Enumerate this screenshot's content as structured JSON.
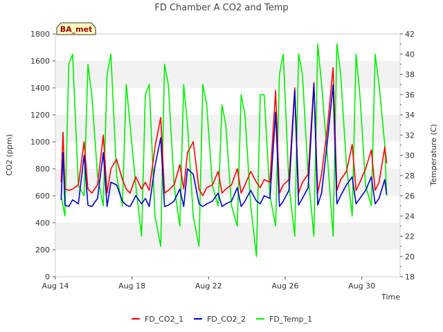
{
  "chart_data": {
    "type": "line",
    "title": "FD Chamber A CO2 and Temp",
    "xlabel": "Time",
    "ylabel_left": "CO2 (ppm)",
    "ylabel_right": "Temperature (C)",
    "badge": "BA_met",
    "x_ticks": [
      {
        "day": 14,
        "label": "Aug 14"
      },
      {
        "day": 18,
        "label": "Aug 18"
      },
      {
        "day": 22,
        "label": "Aug 22"
      },
      {
        "day": 26,
        "label": "Aug 26"
      },
      {
        "day": 30,
        "label": "Aug 30"
      }
    ],
    "xlim_days": [
      14,
      32
    ],
    "ylim_left": [
      0,
      1800
    ],
    "ylim_right": [
      18,
      42
    ],
    "y_ticks_left": [
      "0",
      "200",
      "400",
      "600",
      "800",
      "1000",
      "1200",
      "1400",
      "1600",
      "1800"
    ],
    "y_ticks_right": [
      "18",
      "20",
      "22",
      "24",
      "26",
      "28",
      "30",
      "32",
      "34",
      "36",
      "38",
      "40",
      "42"
    ],
    "legend_position": "bottom",
    "grid": "horizontal bands",
    "series": [
      {
        "name": "FD_CO2_1",
        "axis": "left",
        "color": "#ff0000",
        "x": [
          14.3,
          14.4,
          14.5,
          14.7,
          14.9,
          15.2,
          15.5,
          15.7,
          15.9,
          16.2,
          16.5,
          16.7,
          16.9,
          17.2,
          17.5,
          17.7,
          17.9,
          18.2,
          18.5,
          18.7,
          18.9,
          19.2,
          19.5,
          19.7,
          19.9,
          20.2,
          20.5,
          20.7,
          20.9,
          21.2,
          21.5,
          21.7,
          21.9,
          22.2,
          22.5,
          22.7,
          22.9,
          23.2,
          23.5,
          23.7,
          23.9,
          24.2,
          24.5,
          24.7,
          24.9,
          25.2,
          25.5,
          25.7,
          25.9,
          26.2,
          26.5,
          26.7,
          26.9,
          27.2,
          27.5,
          27.7,
          27.9,
          28.2,
          28.5,
          28.7,
          28.9,
          29.2,
          29.5,
          29.7,
          29.9,
          30.2,
          30.5,
          30.7,
          30.9,
          31.2,
          31.3
        ],
        "y": [
          700,
          1070,
          650,
          640,
          650,
          680,
          1000,
          650,
          620,
          680,
          1050,
          620,
          800,
          870,
          720,
          650,
          620,
          740,
          650,
          700,
          640,
          960,
          1180,
          620,
          640,
          680,
          830,
          650,
          920,
          1000,
          650,
          600,
          660,
          680,
          780,
          620,
          650,
          680,
          800,
          620,
          680,
          780,
          700,
          660,
          720,
          700,
          1380,
          620,
          680,
          720,
          1400,
          620,
          700,
          760,
          1440,
          620,
          760,
          1100,
          1550,
          640,
          720,
          780,
          980,
          640,
          700,
          800,
          940,
          640,
          700,
          960,
          840
        ]
      },
      {
        "name": "FD_CO2_2",
        "axis": "left",
        "color": "#0000cc",
        "x": [
          14.3,
          14.4,
          14.5,
          14.7,
          14.9,
          15.2,
          15.5,
          15.7,
          15.9,
          16.2,
          16.5,
          16.7,
          16.9,
          17.2,
          17.5,
          17.7,
          17.9,
          18.2,
          18.5,
          18.7,
          18.9,
          19.2,
          19.5,
          19.7,
          19.9,
          20.2,
          20.5,
          20.7,
          20.9,
          21.2,
          21.5,
          21.7,
          21.9,
          22.2,
          22.5,
          22.7,
          22.9,
          23.2,
          23.5,
          23.7,
          23.9,
          24.2,
          24.5,
          24.7,
          24.9,
          25.2,
          25.5,
          25.7,
          25.9,
          26.2,
          26.5,
          26.7,
          26.9,
          27.2,
          27.5,
          27.7,
          27.9,
          28.2,
          28.5,
          28.7,
          28.9,
          29.2,
          29.5,
          29.7,
          29.9,
          30.2,
          30.5,
          30.7,
          30.9,
          31.2,
          31.3
        ],
        "y": [
          570,
          920,
          530,
          520,
          570,
          540,
          900,
          530,
          520,
          580,
          920,
          520,
          700,
          680,
          560,
          530,
          520,
          600,
          540,
          580,
          520,
          820,
          1030,
          520,
          530,
          560,
          650,
          520,
          800,
          760,
          540,
          520,
          540,
          560,
          620,
          520,
          540,
          560,
          660,
          520,
          560,
          640,
          560,
          540,
          600,
          580,
          1220,
          520,
          560,
          640,
          1380,
          530,
          580,
          660,
          1430,
          530,
          620,
          1000,
          1420,
          540,
          600,
          680,
          740,
          540,
          580,
          640,
          740,
          540,
          580,
          720,
          610
        ]
      },
      {
        "name": "FD_Temp_1",
        "axis": "right",
        "color": "#00ee00",
        "x": [
          14.3,
          14.5,
          14.7,
          14.9,
          15.2,
          15.5,
          15.7,
          15.9,
          16.2,
          16.5,
          16.7,
          16.9,
          17.2,
          17.5,
          17.7,
          17.9,
          18.2,
          18.5,
          18.7,
          18.9,
          19.2,
          19.5,
          19.7,
          19.9,
          20.2,
          20.5,
          20.7,
          20.9,
          21.2,
          21.5,
          21.7,
          21.9,
          22.2,
          22.5,
          22.7,
          22.9,
          23.2,
          23.5,
          23.7,
          23.9,
          24.2,
          24.5,
          24.7,
          24.9,
          25.2,
          25.5,
          25.7,
          25.9,
          26.2,
          26.5,
          26.7,
          26.9,
          27.2,
          27.5,
          27.7,
          27.9,
          28.2,
          28.5,
          28.7,
          28.9,
          29.2,
          29.5,
          29.7,
          29.9,
          30.2,
          30.5,
          30.7,
          30.9,
          31.2,
          31.3
        ],
        "y": [
          26,
          24,
          39,
          40,
          27,
          26,
          39,
          36,
          28,
          25,
          38,
          40,
          28,
          25,
          37,
          33,
          27,
          22,
          36,
          37,
          24,
          21,
          39,
          37,
          27,
          23,
          37,
          33,
          24,
          21,
          37,
          35,
          27,
          25,
          35,
          33,
          25,
          23,
          36,
          34,
          25,
          20,
          36,
          36,
          26,
          23,
          38,
          40,
          27,
          22,
          40,
          38,
          28,
          22,
          41,
          37,
          30,
          22,
          41,
          38,
          29,
          24,
          40,
          36,
          27,
          25,
          40,
          37,
          31,
          26
        ]
      }
    ]
  }
}
